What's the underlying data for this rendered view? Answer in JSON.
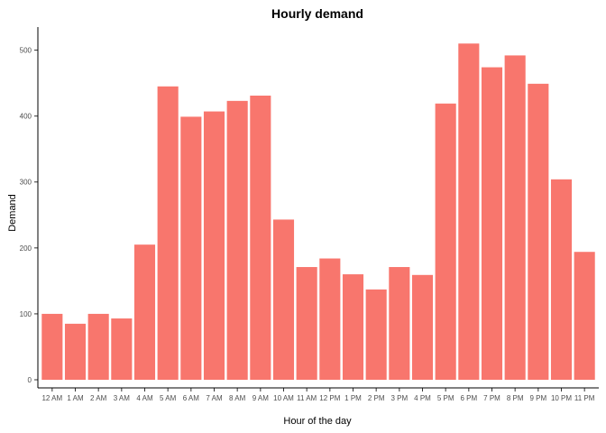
{
  "chart_data": {
    "type": "bar",
    "title": "Hourly demand",
    "xlabel": "Hour of the day",
    "ylabel": "Demand",
    "categories": [
      "12 AM",
      "1 AM",
      "2 AM",
      "3 AM",
      "4 AM",
      "5 AM",
      "6 AM",
      "7 AM",
      "8 AM",
      "9 AM",
      "10 AM",
      "11 AM",
      "12 PM",
      "1 PM",
      "2 PM",
      "3 PM",
      "4 PM",
      "5 PM",
      "6 PM",
      "7 PM",
      "8 PM",
      "9 PM",
      "10 PM",
      "11 PM"
    ],
    "values": [
      100,
      85,
      100,
      93,
      205,
      445,
      399,
      407,
      423,
      431,
      243,
      171,
      184,
      160,
      137,
      171,
      159,
      419,
      510,
      474,
      492,
      449,
      304,
      194
    ],
    "ylim": [
      0,
      535
    ],
    "yticks": [
      0,
      100,
      200,
      300,
      400,
      500
    ],
    "bar_color": "#f8766d",
    "grid": false,
    "legend": "none"
  }
}
